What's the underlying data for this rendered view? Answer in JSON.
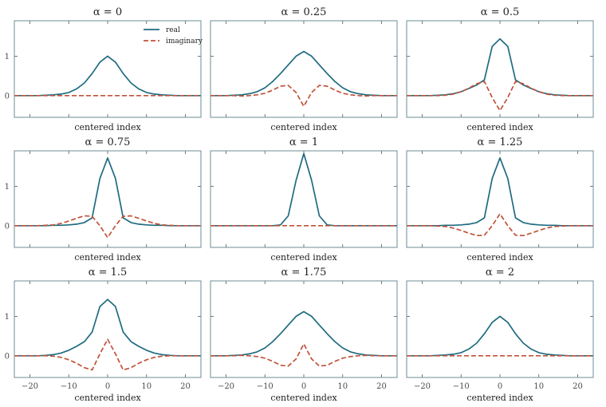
{
  "colors": {
    "real": "#1f6b80",
    "imaginary": "#c0533a",
    "frame": "#6d8c96",
    "tick": "#555555"
  },
  "legend": {
    "real": "real",
    "imaginary": "imaginary"
  },
  "chart_data": [
    {
      "type": "line",
      "title": "α = 0",
      "xlabel": "centered index",
      "xlim": [
        -24,
        24
      ],
      "ylim": [
        -0.55,
        1.9
      ],
      "xticks": [
        -20,
        -10,
        0,
        10,
        20
      ],
      "yticks": [
        0,
        1
      ],
      "show_xticklabels": false,
      "show_legend": true,
      "x": [
        -24,
        -22,
        -20,
        -18,
        -16,
        -14,
        -12,
        -10,
        -8,
        -6,
        -4,
        -2,
        0,
        2,
        4,
        6,
        8,
        10,
        12,
        14,
        16,
        18,
        20,
        22,
        24
      ],
      "series": [
        {
          "name": "real",
          "values": [
            0,
            0,
            0,
            0,
            0.01,
            0.02,
            0.04,
            0.08,
            0.17,
            0.32,
            0.56,
            0.85,
            1.0,
            0.85,
            0.56,
            0.32,
            0.17,
            0.08,
            0.04,
            0.02,
            0.01,
            0,
            0,
            0,
            0
          ]
        },
        {
          "name": "imaginary",
          "values": [
            0,
            0,
            0,
            0,
            0,
            0,
            0,
            0,
            0,
            0,
            0,
            0,
            0,
            0,
            0,
            0,
            0,
            0,
            0,
            0,
            0,
            0,
            0,
            0,
            0
          ]
        }
      ]
    },
    {
      "type": "line",
      "title": "α = 0.25",
      "xlabel": "centered index",
      "xlim": [
        -24,
        24
      ],
      "ylim": [
        -0.55,
        1.9
      ],
      "xticks": [
        -20,
        -10,
        0,
        10,
        20
      ],
      "yticks": [
        0,
        1
      ],
      "show_xticklabels": false,
      "show_legend": false,
      "x": [
        -24,
        -22,
        -20,
        -18,
        -16,
        -14,
        -12,
        -10,
        -8,
        -6,
        -4,
        -2,
        0,
        2,
        4,
        6,
        8,
        10,
        12,
        14,
        16,
        18,
        20,
        22,
        24
      ],
      "series": [
        {
          "name": "real",
          "values": [
            0,
            0,
            0,
            0.01,
            0.02,
            0.05,
            0.1,
            0.2,
            0.36,
            0.56,
            0.78,
            1.0,
            1.12,
            1.0,
            0.78,
            0.56,
            0.36,
            0.2,
            0.1,
            0.05,
            0.02,
            0.01,
            0,
            0,
            0
          ]
        },
        {
          "name": "imaginary",
          "values": [
            0,
            0,
            0,
            0,
            -0.01,
            0,
            0.02,
            0.06,
            0.14,
            0.24,
            0.26,
            0.08,
            -0.27,
            0.08,
            0.26,
            0.24,
            0.14,
            0.06,
            0.02,
            0,
            -0.01,
            0,
            0,
            0,
            0
          ]
        }
      ]
    },
    {
      "type": "line",
      "title": "α = 0.5",
      "xlabel": "centered index",
      "xlim": [
        -24,
        24
      ],
      "ylim": [
        -0.55,
        1.9
      ],
      "xticks": [
        -20,
        -10,
        0,
        10,
        20
      ],
      "yticks": [
        0,
        1
      ],
      "show_xticklabels": false,
      "show_legend": false,
      "x": [
        -24,
        -22,
        -20,
        -18,
        -16,
        -14,
        -12,
        -10,
        -8,
        -6,
        -4,
        -2,
        0,
        2,
        4,
        6,
        8,
        10,
        12,
        14,
        16,
        18,
        20,
        22,
        24
      ],
      "series": [
        {
          "name": "real",
          "values": [
            0,
            0,
            0,
            0,
            0.01,
            0.02,
            0.05,
            0.1,
            0.18,
            0.27,
            0.4,
            1.25,
            1.44,
            1.25,
            0.4,
            0.27,
            0.18,
            0.1,
            0.05,
            0.02,
            0.01,
            0,
            0,
            0,
            0
          ]
        },
        {
          "name": "imaginary",
          "values": [
            0,
            0,
            0,
            0,
            0,
            0.01,
            0.04,
            0.1,
            0.19,
            0.3,
            0.36,
            -0.05,
            -0.38,
            -0.05,
            0.36,
            0.3,
            0.19,
            0.1,
            0.04,
            0.01,
            0,
            0,
            0,
            0,
            0
          ]
        }
      ]
    },
    {
      "type": "line",
      "title": "α = 0.75",
      "xlabel": "centered index",
      "xlim": [
        -24,
        24
      ],
      "ylim": [
        -0.55,
        1.9
      ],
      "xticks": [
        -20,
        -10,
        0,
        10,
        20
      ],
      "yticks": [
        0,
        1
      ],
      "show_xticklabels": false,
      "show_legend": false,
      "x": [
        -24,
        -22,
        -20,
        -18,
        -16,
        -14,
        -12,
        -10,
        -8,
        -6,
        -4,
        -2,
        0,
        2,
        4,
        6,
        8,
        10,
        12,
        14,
        16,
        18,
        20,
        22,
        24
      ],
      "series": [
        {
          "name": "real",
          "values": [
            0,
            0,
            0,
            0,
            0,
            0.01,
            0.01,
            0.02,
            0.04,
            0.08,
            0.2,
            1.2,
            1.72,
            1.2,
            0.2,
            0.08,
            0.04,
            0.02,
            0.01,
            0.01,
            0,
            0,
            0,
            0,
            0
          ]
        },
        {
          "name": "imaginary",
          "values": [
            0,
            0,
            0,
            0,
            0.01,
            0.02,
            0.06,
            0.12,
            0.19,
            0.25,
            0.24,
            0,
            -0.3,
            0,
            0.24,
            0.25,
            0.19,
            0.12,
            0.06,
            0.02,
            0.01,
            0,
            0,
            0,
            0
          ]
        }
      ]
    },
    {
      "type": "line",
      "title": "α = 1",
      "xlabel": "centered index",
      "xlim": [
        -24,
        24
      ],
      "ylim": [
        -0.55,
        1.9
      ],
      "xticks": [
        -20,
        -10,
        0,
        10,
        20
      ],
      "yticks": [
        0,
        1
      ],
      "show_xticklabels": false,
      "show_legend": false,
      "x": [
        -24,
        -22,
        -20,
        -18,
        -16,
        -14,
        -12,
        -10,
        -8,
        -6,
        -4,
        -2,
        0,
        2,
        4,
        6,
        8,
        10,
        12,
        14,
        16,
        18,
        20,
        22,
        24
      ],
      "series": [
        {
          "name": "real",
          "values": [
            0,
            0,
            0,
            0,
            0,
            0,
            0,
            0,
            0,
            0.02,
            0.25,
            1.15,
            1.83,
            1.15,
            0.25,
            0.02,
            0,
            0,
            0,
            0,
            0,
            0,
            0,
            0,
            0
          ]
        },
        {
          "name": "imaginary",
          "values": [
            0,
            0,
            0,
            0,
            0,
            0,
            0,
            0,
            0,
            0,
            0,
            0,
            0,
            0,
            0,
            0,
            0,
            0,
            0,
            0,
            0,
            0,
            0,
            0,
            0
          ]
        }
      ]
    },
    {
      "type": "line",
      "title": "α = 1.25",
      "xlabel": "centered index",
      "xlim": [
        -24,
        24
      ],
      "ylim": [
        -0.55,
        1.9
      ],
      "xticks": [
        -20,
        -10,
        0,
        10,
        20
      ],
      "yticks": [
        0,
        1
      ],
      "show_xticklabels": false,
      "show_legend": false,
      "x": [
        -24,
        -22,
        -20,
        -18,
        -16,
        -14,
        -12,
        -10,
        -8,
        -6,
        -4,
        -2,
        0,
        2,
        4,
        6,
        8,
        10,
        12,
        14,
        16,
        18,
        20,
        22,
        24
      ],
      "series": [
        {
          "name": "real",
          "values": [
            0,
            0,
            0,
            0,
            0,
            0.01,
            0.01,
            0.02,
            0.04,
            0.08,
            0.2,
            1.2,
            1.72,
            1.2,
            0.2,
            0.08,
            0.04,
            0.02,
            0.01,
            0.01,
            0,
            0,
            0,
            0,
            0
          ]
        },
        {
          "name": "imaginary",
          "values": [
            0,
            0,
            0,
            0,
            -0.01,
            -0.02,
            -0.06,
            -0.12,
            -0.19,
            -0.25,
            -0.24,
            0,
            0.3,
            0,
            -0.24,
            -0.25,
            -0.19,
            -0.12,
            -0.06,
            -0.02,
            -0.01,
            0,
            0,
            0,
            0
          ]
        }
      ]
    },
    {
      "type": "line",
      "title": "α = 1.5",
      "xlabel": "centered index",
      "xlim": [
        -24,
        24
      ],
      "ylim": [
        -0.55,
        1.9
      ],
      "xticks": [
        -20,
        -10,
        0,
        10,
        20
      ],
      "yticks": [
        0,
        1
      ],
      "show_xticklabels": true,
      "show_legend": false,
      "x": [
        -24,
        -22,
        -20,
        -18,
        -16,
        -14,
        -12,
        -10,
        -8,
        -6,
        -4,
        -2,
        0,
        2,
        4,
        6,
        8,
        10,
        12,
        14,
        16,
        18,
        20,
        22,
        24
      ],
      "series": [
        {
          "name": "real",
          "values": [
            0,
            0,
            0,
            0,
            0.01,
            0.03,
            0.07,
            0.14,
            0.24,
            0.36,
            0.6,
            1.25,
            1.43,
            1.25,
            0.6,
            0.36,
            0.24,
            0.14,
            0.07,
            0.03,
            0.01,
            0,
            0,
            0,
            0
          ]
        },
        {
          "name": "imaginary",
          "values": [
            0,
            0,
            0,
            0,
            0,
            -0.01,
            -0.04,
            -0.1,
            -0.19,
            -0.3,
            -0.36,
            0.05,
            0.42,
            0.05,
            -0.36,
            -0.3,
            -0.19,
            -0.1,
            -0.04,
            -0.01,
            0,
            0,
            0,
            0,
            0
          ]
        }
      ]
    },
    {
      "type": "line",
      "title": "α = 1.75",
      "xlabel": "centered index",
      "xlim": [
        -24,
        24
      ],
      "ylim": [
        -0.55,
        1.9
      ],
      "xticks": [
        -20,
        -10,
        0,
        10,
        20
      ],
      "yticks": [
        0,
        1
      ],
      "show_xticklabels": true,
      "show_legend": false,
      "x": [
        -24,
        -22,
        -20,
        -18,
        -16,
        -14,
        -12,
        -10,
        -8,
        -6,
        -4,
        -2,
        0,
        2,
        4,
        6,
        8,
        10,
        12,
        14,
        16,
        18,
        20,
        22,
        24
      ],
      "series": [
        {
          "name": "real",
          "values": [
            0,
            0,
            0,
            0.01,
            0.02,
            0.05,
            0.1,
            0.2,
            0.36,
            0.56,
            0.78,
            1.0,
            1.12,
            1.0,
            0.78,
            0.56,
            0.36,
            0.2,
            0.1,
            0.05,
            0.02,
            0.01,
            0,
            0,
            0
          ]
        },
        {
          "name": "imaginary",
          "values": [
            0,
            0,
            0,
            0,
            0.01,
            0,
            -0.02,
            -0.06,
            -0.14,
            -0.24,
            -0.26,
            -0.08,
            0.3,
            -0.08,
            -0.26,
            -0.24,
            -0.14,
            -0.06,
            -0.02,
            0,
            0.01,
            0,
            0,
            0,
            0
          ]
        }
      ]
    },
    {
      "type": "line",
      "title": "α = 2",
      "xlabel": "centered index",
      "xlim": [
        -24,
        24
      ],
      "ylim": [
        -0.55,
        1.9
      ],
      "xticks": [
        -20,
        -10,
        0,
        10,
        20
      ],
      "yticks": [
        0,
        1
      ],
      "show_xticklabels": true,
      "show_legend": false,
      "x": [
        -24,
        -22,
        -20,
        -18,
        -16,
        -14,
        -12,
        -10,
        -8,
        -6,
        -4,
        -2,
        0,
        2,
        4,
        6,
        8,
        10,
        12,
        14,
        16,
        18,
        20,
        22,
        24
      ],
      "series": [
        {
          "name": "real",
          "values": [
            0,
            0,
            0,
            0,
            0.01,
            0.02,
            0.04,
            0.08,
            0.17,
            0.32,
            0.56,
            0.85,
            1.0,
            0.85,
            0.56,
            0.32,
            0.17,
            0.08,
            0.04,
            0.02,
            0.01,
            0,
            0,
            0,
            0
          ]
        },
        {
          "name": "imaginary",
          "values": [
            0,
            0,
            0,
            0,
            0,
            0,
            0,
            0,
            0,
            0,
            0,
            0,
            0,
            0,
            0,
            0,
            0,
            0,
            0,
            0,
            0,
            0,
            0,
            0,
            0
          ]
        }
      ]
    }
  ]
}
